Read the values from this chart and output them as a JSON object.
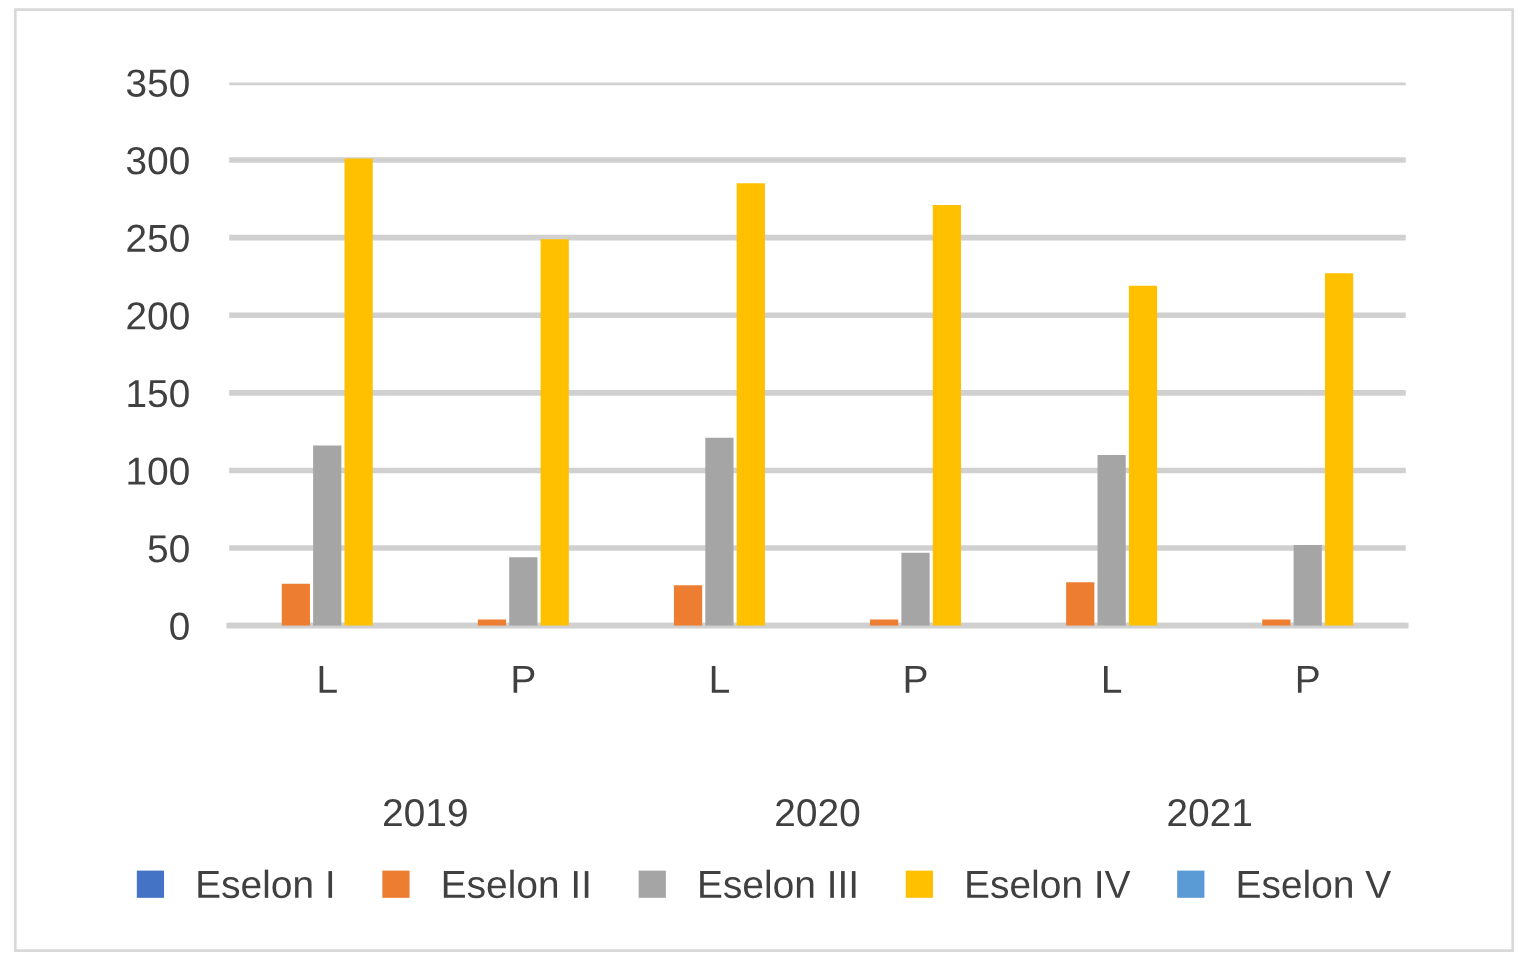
{
  "chart_data": {
    "type": "bar",
    "categories": [
      "L",
      "P",
      "L",
      "P",
      "L",
      "P"
    ],
    "annotations": [
      "2019",
      "2020",
      "2021"
    ],
    "series": [
      {
        "name": "Eselon I",
        "color": "#4472c4",
        "values": [
          0,
          0,
          0,
          0,
          0,
          0
        ]
      },
      {
        "name": "Eselon II",
        "color": "#ed7d31",
        "values": [
          27,
          4,
          26,
          4,
          28,
          4
        ]
      },
      {
        "name": "Eselon III",
        "color": "#a5a5a5",
        "values": [
          116,
          44,
          121,
          47,
          110,
          52
        ]
      },
      {
        "name": "Eselon IV",
        "color": "#ffc000",
        "values": [
          301,
          249,
          285,
          271,
          219,
          227
        ]
      },
      {
        "name": "Eselon V",
        "color": "#5b9bd5",
        "values": [
          0,
          0,
          0,
          0,
          0,
          0
        ]
      }
    ],
    "ylim": [
      0,
      350
    ],
    "yticks": [
      0,
      50,
      100,
      150,
      200,
      250,
      300,
      350
    ],
    "grid": "y",
    "legend": "bottom"
  }
}
